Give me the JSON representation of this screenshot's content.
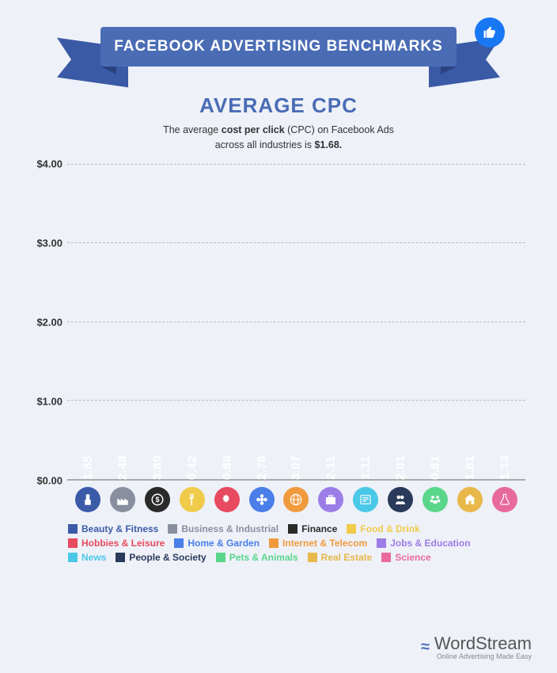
{
  "banner_title": "FACEBOOK ADVERTISING BENCHMARKS",
  "section_title": "AVERAGE CPC",
  "subtitle_pre": "The average ",
  "subtitle_b1": "cost per click",
  "subtitle_mid": " (CPC) on Facebook Ads\nacross all industries is ",
  "subtitle_b2": "$1.68.",
  "y_ticks": [
    "$0.00",
    "$1.00",
    "$2.00",
    "$3.00",
    "$4.00"
  ],
  "y_max": 4.0,
  "bars": [
    {
      "name": "Beauty & Fitness",
      "value": 1.85,
      "color": "#3b5ba8",
      "icon": "lipstick"
    },
    {
      "name": "Business & Industrial",
      "value": 2.48,
      "color": "#8a8fa0",
      "icon": "factory"
    },
    {
      "name": "Finance",
      "value": 3.89,
      "color": "#2a2a2a",
      "icon": "dollar"
    },
    {
      "name": "Food & Drink",
      "value": 0.42,
      "color": "#f0cb4a",
      "icon": "fork"
    },
    {
      "name": "Hobbies & Leisure",
      "value": 0.68,
      "color": "#e84a5f",
      "icon": "puzzle"
    },
    {
      "name": "Home & Garden",
      "value": 2.78,
      "color": "#4a7ee8",
      "icon": "flower"
    },
    {
      "name": "Internet & Telecom",
      "value": 3.07,
      "color": "#f09a3e",
      "icon": "globe"
    },
    {
      "name": "Jobs & Education",
      "value": 2.11,
      "color": "#9c7de8",
      "icon": "briefcase"
    },
    {
      "name": "News",
      "value": 1.11,
      "color": "#4ac8e8",
      "icon": "news"
    },
    {
      "name": "People & Society",
      "value": 2.01,
      "color": "#2a3a5a",
      "icon": "people"
    },
    {
      "name": "Pets & Animals",
      "value": 0.61,
      "color": "#5ad68a",
      "icon": "paw"
    },
    {
      "name": "Real Estate",
      "value": 1.81,
      "color": "#e8b84a",
      "icon": "home"
    },
    {
      "name": "Science",
      "value": 1.33,
      "color": "#e86a9c",
      "icon": "flask"
    }
  ],
  "brand_name": "WordStream",
  "brand_tag": "Online Advertising Made Easy"
}
